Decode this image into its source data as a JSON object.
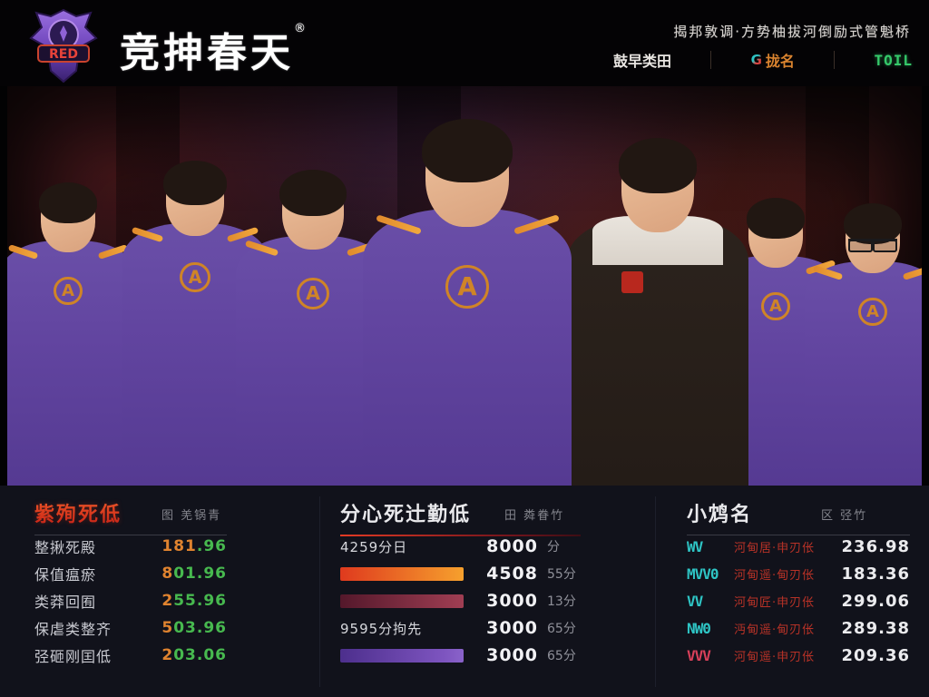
{
  "colors": {
    "accent_red": "#e33a24",
    "green_value": "#47b94f",
    "orange_value": "#e0832f",
    "teal_prefix": "#2ec4c4",
    "crimson_prefix": "#d8405a",
    "bar_orange": "#f6a02d",
    "bar_maroon": "#a03e53",
    "bar_purple": "#7e55c0",
    "nav_green": "#35c96a",
    "nav_orange": "#d9832f",
    "jersey_purple": "#6245a0",
    "jersey_trim_orange": "#e08a2c"
  },
  "header": {
    "logo_text": "RED",
    "title": "竞抻春天",
    "title_mark": "®",
    "tagline": "揭邦敦调·方势柚拔河倒励式管魁桥",
    "nav": [
      {
        "label": "鼓早类田"
      },
      {
        "label": "拢名",
        "icon": "g-logo-icon",
        "icon_text": "G"
      },
      {
        "label": "TOIL"
      }
    ]
  },
  "panels": {
    "left": {
      "title": "紫殉死低",
      "more": "图 羌锅青",
      "rows": [
        {
          "label": "整揪死殿",
          "value_head": "181",
          "value_tail": ".96"
        },
        {
          "label": "保值瘟瘀",
          "value_head": "8",
          "value_tail": "01.96"
        },
        {
          "label": "类莽回囿",
          "value_head": "2",
          "value_tail": "55.96"
        },
        {
          "label": "保虐类整齐",
          "value_head": "5",
          "value_tail": "03.96"
        },
        {
          "label": "弪砸刚囯低",
          "value_head": "2",
          "value_tail": "03.06"
        }
      ]
    },
    "middle": {
      "title": "分心死辻勤低",
      "more": "田 粦眷竹",
      "rows": [
        {
          "type": "text",
          "label": "4259分日",
          "value": "8000",
          "suffix": "分"
        },
        {
          "type": "bar",
          "bar": "orange",
          "value": "4508",
          "suffix": "55分"
        },
        {
          "type": "bar",
          "bar": "maroon",
          "value": "3000",
          "suffix": "13分"
        },
        {
          "type": "text",
          "label": "9595分拘先",
          "value": "3000",
          "suffix": "65分"
        },
        {
          "type": "bar",
          "bar": "purple",
          "value": "3000",
          "suffix": "65分"
        }
      ]
    },
    "right": {
      "title": "小鸩名",
      "more": "区 弪竹",
      "rows": [
        {
          "prefix": "WV",
          "label": "河甸居·申刃伥",
          "value": "236.98"
        },
        {
          "prefix": "MVV0",
          "label": "河甸遥·甸刃伥",
          "value": "183.36"
        },
        {
          "prefix": "VV",
          "label": "河甸匠·申刃伥",
          "value": "299.06"
        },
        {
          "prefix": "NW0",
          "label": "沔甸遥·甸刃伥",
          "value": "289.38"
        },
        {
          "prefix": "VVV",
          "label": "河甸遥·申刃伥",
          "value": "209.36"
        }
      ]
    }
  }
}
